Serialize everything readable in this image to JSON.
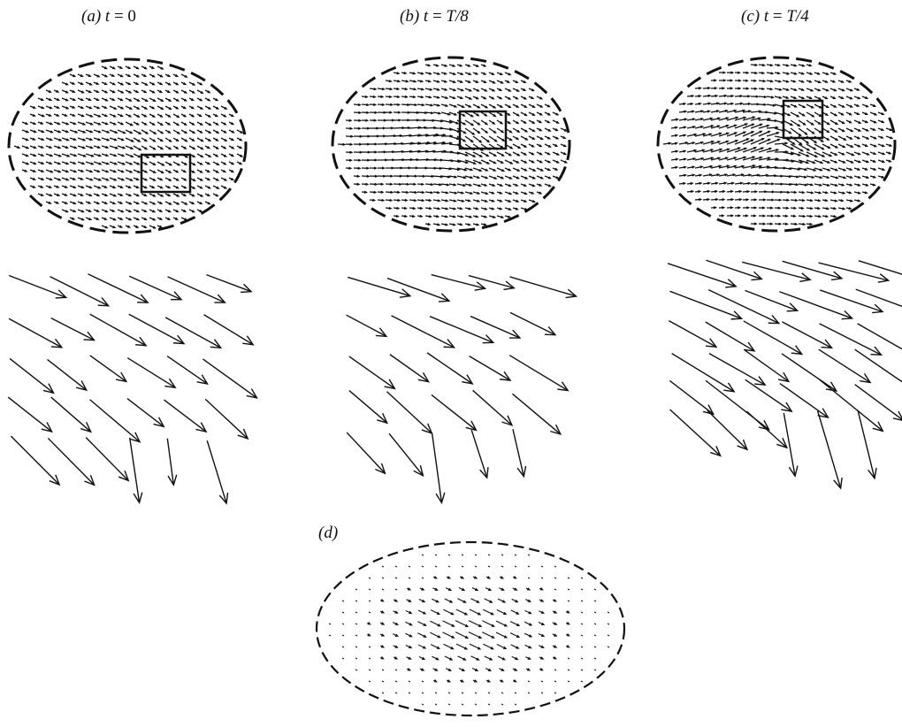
{
  "panels": [
    {
      "id": "a",
      "label": {
        "letter": "(a)",
        "var": "t",
        "eq": " = ",
        "value": "0"
      },
      "vortex_strength": 0.25,
      "rotation_deg": 10,
      "has_inset_box": true
    },
    {
      "id": "b",
      "label": {
        "letter": "(b)",
        "var": "t",
        "eq": " = ",
        "value": "T/8"
      },
      "vortex_strength": 0.75,
      "rotation_deg": 0,
      "has_inset_box": true
    },
    {
      "id": "c",
      "label": {
        "letter": "(c)",
        "var": "t",
        "eq": " = ",
        "value": "T/4"
      },
      "vortex_strength": 1.0,
      "rotation_deg": -8,
      "has_inset_box": true
    }
  ],
  "panel_d": {
    "label": "(d)",
    "description": "weak central flow field"
  },
  "colors": {
    "ink": "#111111",
    "background": "#ffffff"
  }
}
